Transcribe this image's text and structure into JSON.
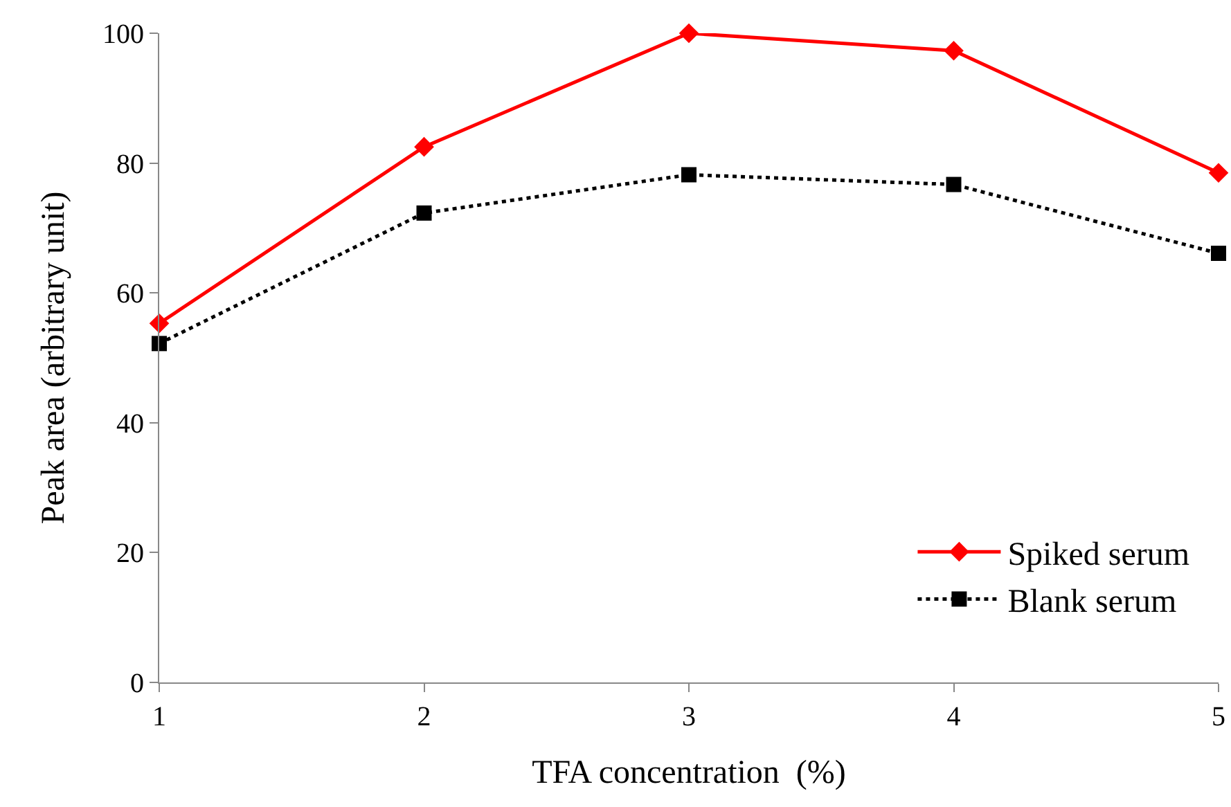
{
  "chart_data": {
    "type": "line",
    "xlabel": "TFA concentration  (%)",
    "ylabel": "Peak area (arbitrary unit)",
    "x": [
      1,
      2,
      3,
      4,
      5
    ],
    "series": [
      {
        "name": "Spiked serum",
        "color": "#ff0000",
        "values": [
          55.3,
          82.5,
          100,
          97.3,
          78.5
        ],
        "marker": "diamond",
        "line_style": "solid"
      },
      {
        "name": "Blank serum",
        "color": "#000000",
        "values": [
          52.2,
          72.3,
          78.2,
          76.7,
          66.1
        ],
        "marker": "square",
        "line_style": "dotted"
      }
    ],
    "xlim": [
      1,
      5
    ],
    "xticks": [
      1,
      2,
      3,
      4,
      5
    ],
    "ylim": [
      0,
      100
    ],
    "yticks": [
      0,
      20,
      40,
      60,
      80,
      100
    ],
    "grid": false,
    "legend": "bottom right"
  }
}
